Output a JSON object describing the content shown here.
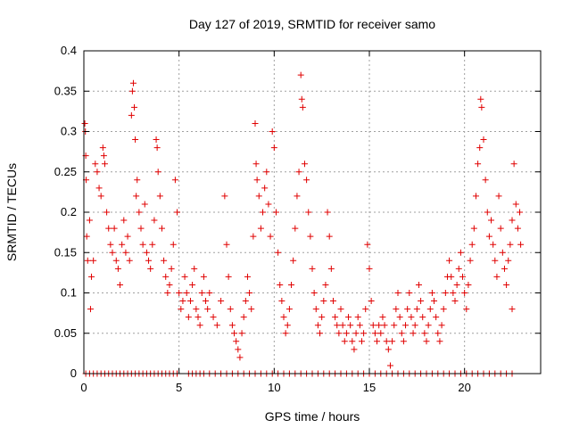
{
  "chart_data": {
    "type": "scatter",
    "title": "Day 127 of 2019, SRMTID for receiver samo",
    "xlabel": "GPS time / hours",
    "ylabel": "SRMTID / TECUs",
    "xlim": [
      0,
      24
    ],
    "ylim": [
      0,
      0.4
    ],
    "xticks": [
      0,
      5,
      10,
      15,
      20
    ],
    "xtick_labels": [
      "0",
      "5",
      "10",
      "15",
      "20"
    ],
    "yticks": [
      0,
      0.05,
      0.1,
      0.15,
      0.2,
      0.25,
      0.3,
      0.35,
      0.4
    ],
    "ytick_labels": [
      "0",
      "0.05",
      "0.1",
      "0.15",
      "0.2",
      "0.25",
      "0.3",
      "0.35",
      "0.4"
    ],
    "grid": true,
    "marker": "+",
    "series": [
      {
        "name": "SRMTID",
        "color": "#e00000",
        "points": [
          [
            0.05,
            0.31
          ],
          [
            0.08,
            0.3
          ],
          [
            0.1,
            0.27
          ],
          [
            0.12,
            0.24
          ],
          [
            0.15,
            0.17
          ],
          [
            0.2,
            0.14
          ],
          [
            0.3,
            0.19
          ],
          [
            0.35,
            0.08
          ],
          [
            0.4,
            0.12
          ],
          [
            0.5,
            0.14
          ],
          [
            0.6,
            0.26
          ],
          [
            0.7,
            0.25
          ],
          [
            0.8,
            0.23
          ],
          [
            0.9,
            0.22
          ],
          [
            1.0,
            0.28
          ],
          [
            1.05,
            0.27
          ],
          [
            1.1,
            0.26
          ],
          [
            1.2,
            0.2
          ],
          [
            1.3,
            0.18
          ],
          [
            1.4,
            0.16
          ],
          [
            1.5,
            0.15
          ],
          [
            1.6,
            0.18
          ],
          [
            1.7,
            0.14
          ],
          [
            1.8,
            0.13
          ],
          [
            1.9,
            0.11
          ],
          [
            2.0,
            0.16
          ],
          [
            2.1,
            0.19
          ],
          [
            2.2,
            0.15
          ],
          [
            2.3,
            0.17
          ],
          [
            2.4,
            0.14
          ],
          [
            2.5,
            0.32
          ],
          [
            2.55,
            0.35
          ],
          [
            2.6,
            0.36
          ],
          [
            2.65,
            0.33
          ],
          [
            2.7,
            0.29
          ],
          [
            2.75,
            0.22
          ],
          [
            2.8,
            0.24
          ],
          [
            2.9,
            0.2
          ],
          [
            3.0,
            0.18
          ],
          [
            3.1,
            0.16
          ],
          [
            3.2,
            0.21
          ],
          [
            3.3,
            0.15
          ],
          [
            3.4,
            0.14
          ],
          [
            3.5,
            0.13
          ],
          [
            3.6,
            0.16
          ],
          [
            3.7,
            0.19
          ],
          [
            3.8,
            0.29
          ],
          [
            3.85,
            0.28
          ],
          [
            3.9,
            0.25
          ],
          [
            4.0,
            0.22
          ],
          [
            4.1,
            0.18
          ],
          [
            4.2,
            0.14
          ],
          [
            4.3,
            0.12
          ],
          [
            4.4,
            0.1
          ],
          [
            4.5,
            0.11
          ],
          [
            4.6,
            0.13
          ],
          [
            4.7,
            0.16
          ],
          [
            4.8,
            0.24
          ],
          [
            4.9,
            0.2
          ],
          [
            5.0,
            0.1
          ],
          [
            5.1,
            0.08
          ],
          [
            5.2,
            0.09
          ],
          [
            5.3,
            0.12
          ],
          [
            5.4,
            0.1
          ],
          [
            5.5,
            0.07
          ],
          [
            5.6,
            0.09
          ],
          [
            5.7,
            0.11
          ],
          [
            5.8,
            0.13
          ],
          [
            5.9,
            0.08
          ],
          [
            6.0,
            0.07
          ],
          [
            6.1,
            0.06
          ],
          [
            6.2,
            0.1
          ],
          [
            6.3,
            0.12
          ],
          [
            6.4,
            0.09
          ],
          [
            6.5,
            0.08
          ],
          [
            6.6,
            0.1
          ],
          [
            6.8,
            0.07
          ],
          [
            7.0,
            0.06
          ],
          [
            7.2,
            0.09
          ],
          [
            7.4,
            0.22
          ],
          [
            7.5,
            0.16
          ],
          [
            7.6,
            0.12
          ],
          [
            7.7,
            0.08
          ],
          [
            7.8,
            0.06
          ],
          [
            7.9,
            0.05
          ],
          [
            8.0,
            0.04
          ],
          [
            8.1,
            0.03
          ],
          [
            8.2,
            0.02
          ],
          [
            8.3,
            0.05
          ],
          [
            8.4,
            0.07
          ],
          [
            8.5,
            0.09
          ],
          [
            8.6,
            0.12
          ],
          [
            8.7,
            0.1
          ],
          [
            8.8,
            0.08
          ],
          [
            8.9,
            0.17
          ],
          [
            9.0,
            0.31
          ],
          [
            9.05,
            0.26
          ],
          [
            9.1,
            0.24
          ],
          [
            9.2,
            0.22
          ],
          [
            9.3,
            0.18
          ],
          [
            9.4,
            0.2
          ],
          [
            9.5,
            0.23
          ],
          [
            9.6,
            0.25
          ],
          [
            9.7,
            0.21
          ],
          [
            9.8,
            0.17
          ],
          [
            9.9,
            0.3
          ],
          [
            10.0,
            0.28
          ],
          [
            10.1,
            0.2
          ],
          [
            10.2,
            0.15
          ],
          [
            10.3,
            0.11
          ],
          [
            10.4,
            0.09
          ],
          [
            10.5,
            0.07
          ],
          [
            10.6,
            0.05
          ],
          [
            10.7,
            0.06
          ],
          [
            10.8,
            0.08
          ],
          [
            10.9,
            0.11
          ],
          [
            11.0,
            0.14
          ],
          [
            11.1,
            0.18
          ],
          [
            11.2,
            0.22
          ],
          [
            11.3,
            0.25
          ],
          [
            11.4,
            0.37
          ],
          [
            11.45,
            0.34
          ],
          [
            11.5,
            0.33
          ],
          [
            11.6,
            0.26
          ],
          [
            11.7,
            0.24
          ],
          [
            11.8,
            0.2
          ],
          [
            11.9,
            0.17
          ],
          [
            12.0,
            0.13
          ],
          [
            12.1,
            0.1
          ],
          [
            12.2,
            0.08
          ],
          [
            12.3,
            0.06
          ],
          [
            12.4,
            0.05
          ],
          [
            12.5,
            0.07
          ],
          [
            12.6,
            0.09
          ],
          [
            12.7,
            0.11
          ],
          [
            12.8,
            0.2
          ],
          [
            12.9,
            0.17
          ],
          [
            13.0,
            0.13
          ],
          [
            13.1,
            0.09
          ],
          [
            13.2,
            0.07
          ],
          [
            13.3,
            0.06
          ],
          [
            13.4,
            0.05
          ],
          [
            13.5,
            0.08
          ],
          [
            13.6,
            0.06
          ],
          [
            13.7,
            0.04
          ],
          [
            13.8,
            0.05
          ],
          [
            13.9,
            0.07
          ],
          [
            14.0,
            0.06
          ],
          [
            14.1,
            0.04
          ],
          [
            14.2,
            0.03
          ],
          [
            14.3,
            0.05
          ],
          [
            14.4,
            0.07
          ],
          [
            14.5,
            0.06
          ],
          [
            14.6,
            0.04
          ],
          [
            14.7,
            0.05
          ],
          [
            14.8,
            0.08
          ],
          [
            14.9,
            0.16
          ],
          [
            15.0,
            0.13
          ],
          [
            15.1,
            0.09
          ],
          [
            15.2,
            0.06
          ],
          [
            15.3,
            0.05
          ],
          [
            15.4,
            0.04
          ],
          [
            15.5,
            0.06
          ],
          [
            15.6,
            0.05
          ],
          [
            15.7,
            0.07
          ],
          [
            15.8,
            0.06
          ],
          [
            15.9,
            0.04
          ],
          [
            16.0,
            0.03
          ],
          [
            16.1,
            0.01
          ],
          [
            16.2,
            0.04
          ],
          [
            16.3,
            0.06
          ],
          [
            16.4,
            0.08
          ],
          [
            16.5,
            0.1
          ],
          [
            16.6,
            0.07
          ],
          [
            16.7,
            0.05
          ],
          [
            16.8,
            0.04
          ],
          [
            16.9,
            0.06
          ],
          [
            17.0,
            0.08
          ],
          [
            17.1,
            0.1
          ],
          [
            17.2,
            0.07
          ],
          [
            17.3,
            0.05
          ],
          [
            17.4,
            0.06
          ],
          [
            17.5,
            0.08
          ],
          [
            17.6,
            0.11
          ],
          [
            17.7,
            0.09
          ],
          [
            17.8,
            0.07
          ],
          [
            17.9,
            0.05
          ],
          [
            18.0,
            0.04
          ],
          [
            18.1,
            0.06
          ],
          [
            18.2,
            0.08
          ],
          [
            18.3,
            0.1
          ],
          [
            18.4,
            0.09
          ],
          [
            18.5,
            0.07
          ],
          [
            18.6,
            0.05
          ],
          [
            18.7,
            0.04
          ],
          [
            18.8,
            0.06
          ],
          [
            18.9,
            0.08
          ],
          [
            19.0,
            0.1
          ],
          [
            19.1,
            0.12
          ],
          [
            19.2,
            0.14
          ],
          [
            19.3,
            0.12
          ],
          [
            19.4,
            0.1
          ],
          [
            19.5,
            0.09
          ],
          [
            19.6,
            0.11
          ],
          [
            19.7,
            0.13
          ],
          [
            19.8,
            0.15
          ],
          [
            19.9,
            0.12
          ],
          [
            20.0,
            0.1
          ],
          [
            20.1,
            0.08
          ],
          [
            20.2,
            0.11
          ],
          [
            20.3,
            0.14
          ],
          [
            20.4,
            0.16
          ],
          [
            20.5,
            0.18
          ],
          [
            20.6,
            0.22
          ],
          [
            20.7,
            0.26
          ],
          [
            20.8,
            0.28
          ],
          [
            20.85,
            0.34
          ],
          [
            20.9,
            0.33
          ],
          [
            21.0,
            0.29
          ],
          [
            21.1,
            0.24
          ],
          [
            21.2,
            0.2
          ],
          [
            21.3,
            0.17
          ],
          [
            21.4,
            0.19
          ],
          [
            21.5,
            0.16
          ],
          [
            21.6,
            0.14
          ],
          [
            21.7,
            0.12
          ],
          [
            21.8,
            0.22
          ],
          [
            21.9,
            0.18
          ],
          [
            22.0,
            0.15
          ],
          [
            22.1,
            0.13
          ],
          [
            22.2,
            0.11
          ],
          [
            22.3,
            0.14
          ],
          [
            22.4,
            0.16
          ],
          [
            22.5,
            0.19
          ],
          [
            22.6,
            0.26
          ],
          [
            22.7,
            0.21
          ],
          [
            22.8,
            0.18
          ],
          [
            22.9,
            0.2
          ],
          [
            22.95,
            0.16
          ],
          [
            22.5,
            0.08
          ]
        ],
        "zero_x": [
          0.1,
          0.3,
          0.5,
          0.7,
          0.9,
          1.1,
          1.3,
          1.5,
          1.7,
          1.9,
          2.1,
          2.3,
          2.5,
          2.7,
          2.9,
          3.1,
          3.3,
          3.5,
          3.7,
          3.9,
          4.1,
          4.3,
          4.5,
          4.7,
          4.9,
          5.5,
          5.7,
          5.9,
          6.1,
          6.3,
          6.6,
          6.9,
          7.2,
          7.5,
          7.8,
          8.1,
          8.4,
          8.7,
          9.0,
          9.3,
          9.6,
          9.9,
          10.2,
          10.5,
          10.8,
          11.1,
          11.4,
          11.7,
          12.0,
          12.3,
          12.6,
          12.9,
          13.2,
          13.5,
          13.8,
          14.1,
          14.4,
          14.7,
          15.0,
          15.3,
          15.6,
          15.9,
          16.2,
          16.5,
          16.8,
          17.1,
          17.4,
          17.7,
          18.0,
          18.3,
          18.6,
          18.9,
          19.2,
          19.5,
          19.8,
          20.1,
          20.4,
          20.7,
          21.0,
          21.3,
          21.6,
          21.9,
          22.2,
          22.5
        ]
      }
    ]
  }
}
